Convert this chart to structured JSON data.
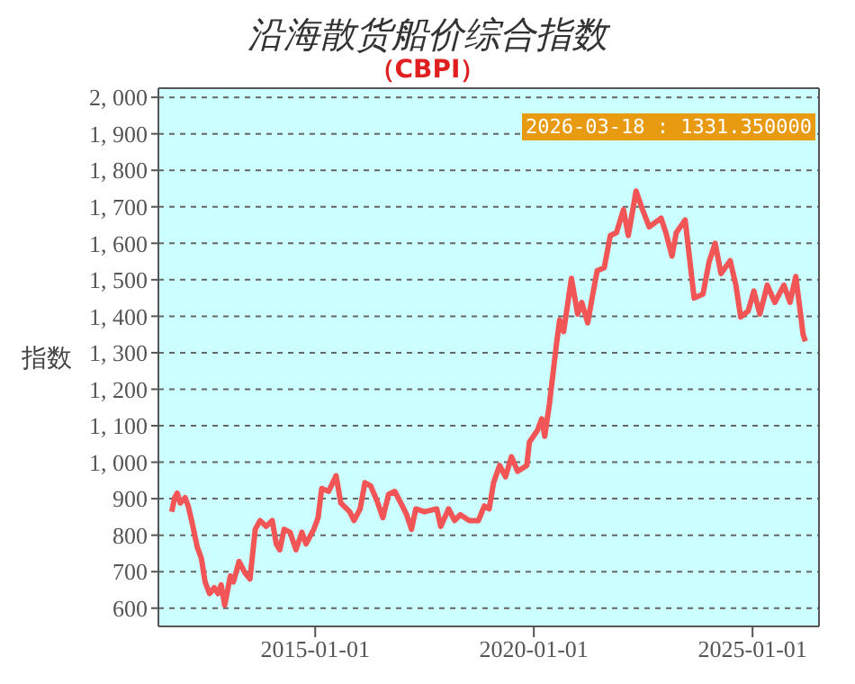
{
  "chart_data": {
    "type": "line",
    "title": "沿海散货船价综合指数",
    "subtitle": "（CBPI）",
    "ylabel": "指数",
    "annotations": [
      "2026-03-18 : 1331.350000"
    ],
    "x": [
      "2011-09-20",
      "2011-10-15",
      "2011-11-05",
      "2011-12-01",
      "2012-01-10",
      "2012-02-05",
      "2012-03-10",
      "2012-04-20",
      "2012-05-25",
      "2012-06-25",
      "2012-08-01",
      "2012-09-10",
      "2012-10-12",
      "2012-11-06",
      "2012-12-06",
      "2013-01-22",
      "2013-02-17",
      "2013-04-05",
      "2013-05-26",
      "2013-07-05",
      "2013-08-18",
      "2013-09-27",
      "2013-11-17",
      "2014-01-07",
      "2014-02-10",
      "2014-03-11",
      "2014-04-16",
      "2014-06-05",
      "2014-07-24",
      "2014-09-12",
      "2014-10-16",
      "2014-12-20",
      "2015-01-25",
      "2015-02-24",
      "2015-04-23",
      "2015-06-24",
      "2015-08-03",
      "2015-10-16",
      "2015-11-21",
      "2016-01-11",
      "2016-02-20",
      "2016-04-08",
      "2016-05-29",
      "2016-07-19",
      "2016-09-05",
      "2016-10-26",
      "2016-12-16",
      "2017-02-03",
      "2017-03-15",
      "2017-04-20",
      "2017-07-02",
      "2017-10-12",
      "2017-11-14",
      "2018-01-19",
      "2018-03-10",
      "2018-04-27",
      "2018-07-12",
      "2018-09-25",
      "2018-11-14",
      "2018-12-24",
      "2019-01-30",
      "2019-03-21",
      "2019-05-10",
      "2019-06-28",
      "2019-08-18",
      "2019-11-03",
      "2019-11-25",
      "2020-01-31",
      "2020-03-07",
      "2020-04-01",
      "2020-05-10",
      "2020-06-13",
      "2020-07-09",
      "2020-08-04",
      "2020-09-06",
      "2020-11-10",
      "2021-01-01",
      "2021-02-04",
      "2021-03-26",
      "2021-05-04",
      "2021-06-13",
      "2021-08-11",
      "2021-10-01",
      "2021-11-21",
      "2022-01-19",
      "2022-02-28",
      "2022-05-04",
      "2022-06-18",
      "2022-08-22",
      "2022-10-27",
      "2022-11-29",
      "2023-01-08",
      "2023-02-28",
      "2023-04-05",
      "2023-06-18",
      "2023-09-01",
      "2023-11-14",
      "2024-01-04",
      "2024-02-24",
      "2024-04-12",
      "2024-06-28",
      "2024-08-15",
      "2024-09-24",
      "2024-11-25",
      "2025-01-12",
      "2025-03-03",
      "2025-05-04",
      "2025-07-06",
      "2025-09-20",
      "2025-11-10",
      "2025-12-28",
      "2026-02-06",
      "2026-02-27",
      "2026-03-18"
    ],
    "series": [
      {
        "color": "#f25555",
        "values": [
          864,
          903,
          915,
          888,
          903,
          880,
          832,
          768,
          736,
          672,
          640,
          656,
          640,
          664,
          608,
          688,
          672,
          728,
          696,
          680,
          816,
          840,
          824,
          840,
          776,
          760,
          816,
          808,
          760,
          808,
          776,
          816,
          848,
          928,
          920,
          963,
          888,
          864,
          840,
          872,
          944,
          935,
          896,
          848,
          912,
          920,
          888,
          856,
          816,
          872,
          864,
          872,
          824,
          872,
          840,
          856,
          840,
          840,
          880,
          872,
          944,
          991,
          960,
          1015,
          975,
          991,
          1055,
          1087,
          1119,
          1071,
          1159,
          1254,
          1326,
          1390,
          1358,
          1504,
          1406,
          1438,
          1382,
          1454,
          1525,
          1533,
          1621,
          1629,
          1692,
          1621,
          1743,
          1700,
          1645,
          1661,
          1669,
          1629,
          1565,
          1629,
          1664,
          1450,
          1461,
          1549,
          1600,
          1517,
          1552,
          1485,
          1398,
          1414,
          1469,
          1406,
          1485,
          1438,
          1485,
          1438,
          1509,
          1406,
          1350,
          1331.35
        ]
      }
    ],
    "xlim": [
      "2011-06-01",
      "2026-07-10"
    ],
    "xticks": [
      "2015-01-01",
      "2020-01-01",
      "2025-01-01"
    ],
    "ylim": [
      550,
      2025
    ],
    "yticks": [
      600,
      700,
      800,
      900,
      {
        "value": 1000,
        "label": "1, 000"
      },
      {
        "value": 1100,
        "label": "1, 100"
      },
      {
        "value": 1200,
        "label": "1, 200"
      },
      {
        "value": 1300,
        "label": "1, 300"
      },
      {
        "value": 1400,
        "label": "1, 400"
      },
      {
        "value": 1500,
        "label": "1, 500"
      },
      {
        "value": 1600,
        "label": "1, 600"
      },
      {
        "value": 1700,
        "label": "1, 700"
      },
      {
        "value": 1800,
        "label": "1, 800"
      },
      {
        "value": 1900,
        "label": "1, 900"
      },
      {
        "value": 2000,
        "label": "2, 000"
      }
    ],
    "grid": "y",
    "legend": false,
    "marker": "none",
    "line_style": "solid"
  }
}
